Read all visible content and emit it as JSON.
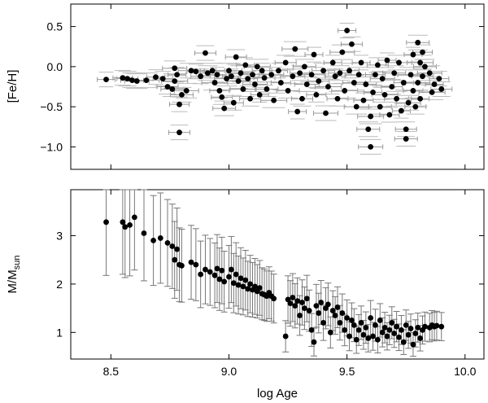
{
  "chart_data": [
    {
      "type": "scatter",
      "panel": "top",
      "ylabel": "[Fe/H]",
      "xlabel": "",
      "xlim": [
        8.33,
        10.08
      ],
      "ylim": [
        -1.28,
        0.78
      ],
      "x_ticks": [
        8.5,
        9.0,
        9.5,
        10.0
      ],
      "x_tick_labels": [
        "",
        "",
        "",
        ""
      ],
      "y_ticks": [
        0.5,
        0.0,
        -0.5,
        -1.0
      ],
      "y_tick_labels": [
        "0.5",
        "0.0",
        "−0.5",
        "−1.0"
      ],
      "error_bars": "horizontal",
      "grid": false,
      "points": [
        [
          8.48,
          -0.16
        ],
        [
          8.55,
          -0.14
        ],
        [
          8.57,
          -0.15
        ],
        [
          8.59,
          -0.17
        ],
        [
          8.61,
          -0.18
        ],
        [
          8.65,
          -0.17
        ],
        [
          8.69,
          -0.13
        ],
        [
          8.72,
          -0.15
        ],
        [
          8.74,
          -0.25
        ],
        [
          8.76,
          -0.28
        ],
        [
          8.77,
          -0.02
        ],
        [
          8.77,
          -0.18
        ],
        [
          8.78,
          -0.1
        ],
        [
          8.79,
          -0.47
        ],
        [
          8.79,
          -0.82
        ],
        [
          8.8,
          -0.35
        ],
        [
          8.82,
          -0.3
        ],
        [
          8.84,
          -0.05
        ],
        [
          8.86,
          -0.06
        ],
        [
          8.88,
          -0.12
        ],
        [
          8.9,
          0.17
        ],
        [
          8.91,
          -0.08
        ],
        [
          8.93,
          -0.05
        ],
        [
          8.94,
          -0.2
        ],
        [
          8.95,
          -0.1
        ],
        [
          8.96,
          -0.3
        ],
        [
          8.97,
          -0.38
        ],
        [
          8.98,
          -0.52
        ],
        [
          8.99,
          -0.15
        ],
        [
          9.0,
          -0.05
        ],
        [
          9.01,
          -0.12
        ],
        [
          9.02,
          -0.45
        ],
        [
          9.03,
          0.12
        ],
        [
          9.04,
          -0.18
        ],
        [
          9.05,
          -0.08
        ],
        [
          9.06,
          -0.28
        ],
        [
          9.07,
          0.02
        ],
        [
          9.08,
          -0.15
        ],
        [
          9.09,
          -0.4
        ],
        [
          9.1,
          -0.1
        ],
        [
          9.11,
          -0.22
        ],
        [
          9.12,
          0.0
        ],
        [
          9.13,
          -0.35
        ],
        [
          9.14,
          -0.05
        ],
        [
          9.15,
          -0.14
        ],
        [
          9.16,
          -0.28
        ],
        [
          9.18,
          -0.1
        ],
        [
          9.19,
          -0.42
        ],
        [
          9.21,
          -0.05
        ],
        [
          9.22,
          -0.2
        ],
        [
          9.24,
          0.05
        ],
        [
          9.25,
          -0.3
        ],
        [
          9.27,
          -0.12
        ],
        [
          9.28,
          0.22
        ],
        [
          9.29,
          -0.56
        ],
        [
          9.3,
          -0.08
        ],
        [
          9.31,
          -0.4
        ],
        [
          9.32,
          0.0
        ],
        [
          9.33,
          -0.22
        ],
        [
          9.35,
          -0.1
        ],
        [
          9.36,
          0.15
        ],
        [
          9.37,
          -0.35
        ],
        [
          9.38,
          -0.18
        ],
        [
          9.4,
          -0.05
        ],
        [
          9.41,
          -0.58
        ],
        [
          9.42,
          -0.25
        ],
        [
          9.44,
          0.05
        ],
        [
          9.45,
          -0.12
        ],
        [
          9.46,
          -0.4
        ],
        [
          9.47,
          -0.08
        ],
        [
          9.48,
          0.18
        ],
        [
          9.49,
          -0.3
        ],
        [
          9.5,
          0.45
        ],
        [
          9.51,
          -0.05
        ],
        [
          9.52,
          0.28
        ],
        [
          9.53,
          -0.2
        ],
        [
          9.54,
          -0.5
        ],
        [
          9.55,
          -0.1
        ],
        [
          9.56,
          0.05
        ],
        [
          9.57,
          -0.42
        ],
        [
          9.58,
          -0.22
        ],
        [
          9.59,
          -0.78
        ],
        [
          9.6,
          -1.0
        ],
        [
          9.6,
          -0.62
        ],
        [
          9.61,
          -0.32
        ],
        [
          9.62,
          -0.1
        ],
        [
          9.63,
          0.02
        ],
        [
          9.64,
          -0.5
        ],
        [
          9.65,
          -0.15
        ],
        [
          9.66,
          -0.35
        ],
        [
          9.67,
          0.08
        ],
        [
          9.68,
          -0.6
        ],
        [
          9.69,
          -0.25
        ],
        [
          9.7,
          -0.08
        ],
        [
          9.71,
          -0.4
        ],
        [
          9.72,
          0.05
        ],
        [
          9.73,
          -0.55
        ],
        [
          9.74,
          -0.2
        ],
        [
          9.75,
          -0.78
        ],
        [
          9.75,
          -0.9
        ],
        [
          9.76,
          -0.45
        ],
        [
          9.77,
          -0.1
        ],
        [
          9.78,
          0.15
        ],
        [
          9.78,
          -0.3
        ],
        [
          9.79,
          -0.5
        ],
        [
          9.8,
          0.3
        ],
        [
          9.8,
          -0.2
        ],
        [
          9.81,
          0.05
        ],
        [
          9.81,
          -0.4
        ],
        [
          9.82,
          0.18
        ],
        [
          9.82,
          -0.12
        ],
        [
          9.83,
          0.0
        ],
        [
          9.85,
          -0.08
        ],
        [
          9.86,
          -0.32
        ],
        [
          9.87,
          -0.22
        ],
        [
          9.89,
          -0.15
        ],
        [
          9.9,
          -0.28
        ]
      ]
    },
    {
      "type": "scatter",
      "panel": "bottom",
      "ylabel": "M/M",
      "ylabel_subscript": "sun",
      "xlabel": "log Age",
      "xlim": [
        8.33,
        10.08
      ],
      "ylim": [
        0.45,
        3.95
      ],
      "x_ticks": [
        8.5,
        9.0,
        9.5,
        10.0
      ],
      "x_tick_labels": [
        "8.5",
        "9.0",
        "9.5",
        "10.0"
      ],
      "y_ticks": [
        1,
        2,
        3
      ],
      "y_tick_labels": [
        "1",
        "2",
        "3"
      ],
      "error_bars": "vertical",
      "grid": false,
      "points": [
        [
          8.48,
          3.28
        ],
        [
          8.55,
          3.28
        ],
        [
          8.56,
          3.18
        ],
        [
          8.58,
          3.22
        ],
        [
          8.6,
          3.38
        ],
        [
          8.64,
          3.05
        ],
        [
          8.68,
          2.9
        ],
        [
          8.71,
          2.95
        ],
        [
          8.74,
          2.85
        ],
        [
          8.76,
          2.78
        ],
        [
          8.77,
          2.5
        ],
        [
          8.78,
          2.72
        ],
        [
          8.79,
          2.4
        ],
        [
          8.8,
          2.38
        ],
        [
          8.84,
          2.45
        ],
        [
          8.86,
          2.4
        ],
        [
          8.88,
          2.2
        ],
        [
          8.9,
          2.3
        ],
        [
          8.92,
          2.25
        ],
        [
          8.94,
          2.18
        ],
        [
          8.95,
          2.32
        ],
        [
          8.96,
          2.1
        ],
        [
          8.97,
          2.28
        ],
        [
          8.98,
          2.05
        ],
        [
          9.0,
          2.15
        ],
        [
          9.01,
          2.3
        ],
        [
          9.02,
          2.02
        ],
        [
          9.03,
          2.2
        ],
        [
          9.04,
          1.98
        ],
        [
          9.05,
          2.12
        ],
        [
          9.06,
          1.95
        ],
        [
          9.07,
          2.08
        ],
        [
          9.08,
          1.9
        ],
        [
          9.09,
          2.0
        ],
        [
          9.1,
          1.88
        ],
        [
          9.11,
          1.95
        ],
        [
          9.12,
          1.85
        ],
        [
          9.13,
          1.92
        ],
        [
          9.14,
          1.8
        ],
        [
          9.15,
          1.78
        ],
        [
          9.16,
          1.75
        ],
        [
          9.17,
          1.82
        ],
        [
          9.18,
          1.75
        ],
        [
          9.19,
          1.7
        ],
        [
          9.24,
          0.92
        ],
        [
          9.25,
          1.68
        ],
        [
          9.26,
          1.6
        ],
        [
          9.27,
          1.72
        ],
        [
          9.28,
          1.55
        ],
        [
          9.29,
          1.65
        ],
        [
          9.3,
          1.35
        ],
        [
          9.31,
          1.62
        ],
        [
          9.32,
          1.5
        ],
        [
          9.33,
          1.7
        ],
        [
          9.34,
          1.45
        ],
        [
          9.35,
          1.05
        ],
        [
          9.36,
          0.8
        ],
        [
          9.37,
          1.55
        ],
        [
          9.38,
          1.4
        ],
        [
          9.39,
          1.62
        ],
        [
          9.4,
          1.2
        ],
        [
          9.41,
          1.5
        ],
        [
          9.42,
          1.58
        ],
        [
          9.43,
          1.0
        ],
        [
          9.44,
          1.45
        ],
        [
          9.45,
          1.35
        ],
        [
          9.46,
          1.52
        ],
        [
          9.47,
          1.2
        ],
        [
          9.48,
          1.4
        ],
        [
          9.49,
          1.05
        ],
        [
          9.5,
          1.3
        ],
        [
          9.51,
          0.92
        ],
        [
          9.52,
          1.25
        ],
        [
          9.53,
          1.15
        ],
        [
          9.54,
          0.85
        ],
        [
          9.55,
          1.05
        ],
        [
          9.56,
          1.2
        ],
        [
          9.57,
          0.95
        ],
        [
          9.58,
          1.1
        ],
        [
          9.59,
          0.88
        ],
        [
          9.6,
          1.3
        ],
        [
          9.61,
          0.92
        ],
        [
          9.62,
          1.15
        ],
        [
          9.63,
          0.85
        ],
        [
          9.64,
          1.25
        ],
        [
          9.65,
          1.0
        ],
        [
          9.66,
          1.1
        ],
        [
          9.67,
          0.92
        ],
        [
          9.68,
          1.05
        ],
        [
          9.69,
          1.2
        ],
        [
          9.7,
          0.98
        ],
        [
          9.71,
          1.12
        ],
        [
          9.72,
          0.9
        ],
        [
          9.73,
          1.05
        ],
        [
          9.74,
          0.8
        ],
        [
          9.75,
          1.15
        ],
        [
          9.76,
          0.95
        ],
        [
          9.77,
          1.08
        ],
        [
          9.78,
          0.75
        ],
        [
          9.79,
          0.98
        ],
        [
          9.8,
          1.1
        ],
        [
          9.81,
          0.88
        ],
        [
          9.82,
          1.05
        ],
        [
          9.83,
          1.12
        ],
        [
          9.85,
          1.1
        ],
        [
          9.86,
          1.15
        ],
        [
          9.87,
          1.12
        ],
        [
          9.88,
          1.14
        ],
        [
          9.9,
          1.12
        ]
      ]
    }
  ]
}
